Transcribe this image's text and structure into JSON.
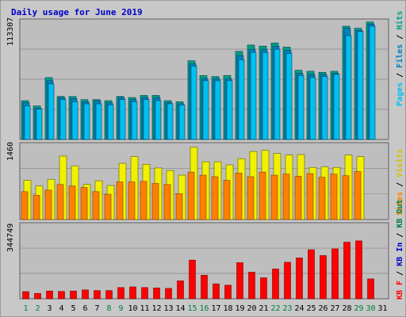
{
  "colors": {
    "background": "#c8c8c8",
    "panel": "#bebebe",
    "grid": "#8a8a8a",
    "title": "#0000cc",
    "hits": "#00a080",
    "files": "#0080c0",
    "pages": "#00c0f0",
    "visits": "#f0f000",
    "sites": "#ff8000",
    "kbin": "#0000cc",
    "kbout": "#008040",
    "kbf": "#ff0000",
    "weekend": "#008040",
    "weekday": "#000000"
  },
  "chart_data": {
    "type": "bar",
    "title": "Daily usage for June 2019",
    "days": [
      "1",
      "2",
      "3",
      "4",
      "5",
      "6",
      "7",
      "8",
      "9",
      "10",
      "11",
      "12",
      "13",
      "14",
      "15",
      "16",
      "17",
      "18",
      "19",
      "20",
      "21",
      "22",
      "23",
      "24",
      "25",
      "26",
      "27",
      "28",
      "29",
      "30",
      "31"
    ],
    "weekend_days": [
      "1",
      "2",
      "8",
      "9",
      "15",
      "16",
      "22",
      "23",
      "29",
      "30"
    ],
    "panels": [
      {
        "name": "hits-files-pages",
        "ymax": 113307,
        "ymax_label": "113307",
        "legend": [
          "Pages",
          "Files",
          "Hits"
        ],
        "series": [
          {
            "name": "Hits",
            "values": [
              37000,
              32000,
              59000,
              41000,
              41000,
              38000,
              38000,
              37000,
              41000,
              40000,
              42000,
              42000,
              37000,
              36000,
              75000,
              61000,
              60000,
              61000,
              84000,
              90000,
              89000,
              92000,
              88000,
              66000,
              65000,
              64000,
              65000,
              108000,
              106000,
              112000,
              0
            ]
          },
          {
            "name": "Files",
            "values": [
              35000,
              30000,
              56000,
              40000,
              39000,
              36000,
              37000,
              35000,
              40000,
              38000,
              40000,
              40000,
              35000,
              34000,
              72000,
              58000,
              58000,
              58000,
              80000,
              86000,
              86000,
              89000,
              85000,
              63000,
              62000,
              62000,
              63000,
              106000,
              104000,
              110000,
              0
            ]
          },
          {
            "name": "Pages",
            "values": [
              32000,
              29000,
              53000,
              38000,
              36000,
              34000,
              34000,
              33000,
              38000,
              36000,
              38000,
              37000,
              34000,
              33000,
              70000,
              56000,
              56000,
              56000,
              76000,
              83000,
              83000,
              86000,
              82000,
              61000,
              59000,
              60000,
              62000,
              99000,
              103000,
              108000,
              0
            ]
          }
        ]
      },
      {
        "name": "visits-sites",
        "ymax": 1460,
        "ymax_label": "1460",
        "legend": [
          "Visits",
          "Sites"
        ],
        "series": [
          {
            "name": "Visits",
            "values": [
              760,
              650,
              780,
              1230,
              1040,
              680,
              750,
              660,
              1090,
              1220,
              1070,
              1000,
              950,
              860,
              1400,
              1120,
              1120,
              1060,
              1180,
              1320,
              1340,
              1280,
              1250,
              1260,
              1010,
              1020,
              1010,
              1250,
              1220,
              0,
              0
            ]
          },
          {
            "name": "Sites",
            "values": [
              540,
              470,
              570,
              680,
              650,
              620,
              540,
              490,
              730,
              730,
              740,
              700,
              680,
              500,
              920,
              860,
              830,
              760,
              900,
              830,
              920,
              860,
              880,
              840,
              890,
              820,
              880,
              850,
              930,
              0,
              0
            ]
          }
        ]
      },
      {
        "name": "kb",
        "ymax": 344749,
        "ymax_label": "344749",
        "legend": [
          "KB F",
          "KB In",
          "KB Out"
        ],
        "series": [
          {
            "name": "KB F",
            "values": [
              33000,
              25000,
              36000,
              34000,
              36000,
              41000,
              38000,
              38000,
              52000,
              55000,
              52000,
              50000,
              48000,
              83000,
              179000,
              109000,
              69000,
              63000,
              167000,
              123000,
              97000,
              138000,
              169000,
              189000,
              227000,
              200000,
              231000,
              262000,
              268000,
              92000,
              0
            ]
          }
        ]
      }
    ]
  }
}
